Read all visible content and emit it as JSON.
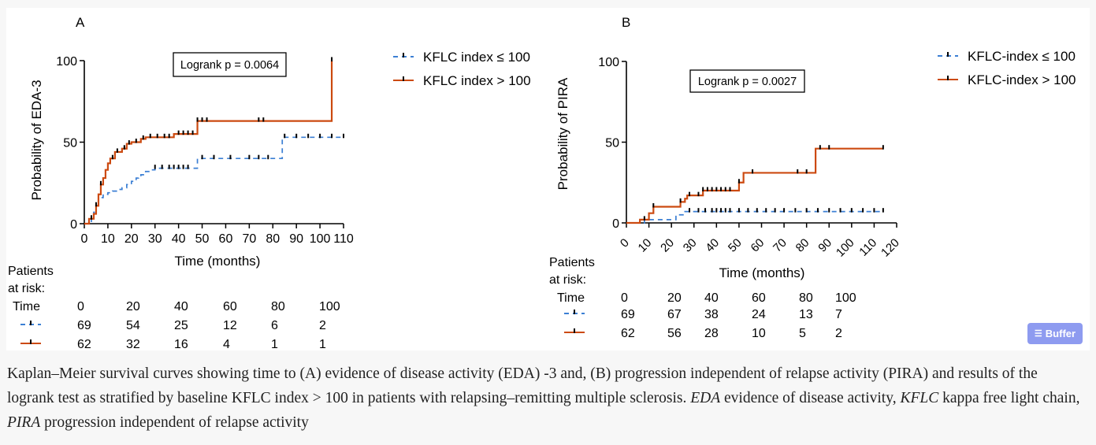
{
  "colors": {
    "orange": "#cc4a10",
    "blue": "#3b7fd4",
    "black": "#000000"
  },
  "chart_data": [
    {
      "type": "line",
      "panel_label": "A",
      "ylabel": "Probability of EDA-3",
      "xlabel": "Time (months)",
      "x_ticks": [
        "0",
        "10",
        "20",
        "30",
        "40",
        "50",
        "60",
        "70",
        "80",
        "90",
        "100",
        "110"
      ],
      "y_ticks": [
        "0",
        "50",
        "100"
      ],
      "xlim": [
        0,
        110
      ],
      "ylim": [
        0,
        100
      ],
      "logrank": "Logrank p = 0.0064",
      "series": [
        {
          "name": "KFLC index ≤ 100",
          "style": "dashed",
          "color": "#3b7fd4",
          "x": [
            0,
            3,
            4,
            5,
            6,
            8,
            10,
            12,
            14,
            16,
            18,
            20,
            22,
            23,
            24,
            26,
            28,
            30,
            48,
            84,
            110
          ],
          "y": [
            0,
            3,
            7,
            12,
            16,
            18,
            19,
            20,
            21,
            22,
            24,
            26,
            28,
            29,
            30,
            32,
            33,
            34,
            40,
            53,
            53
          ]
        },
        {
          "name": "KFLC index > 100",
          "style": "solid",
          "color": "#cc4a10",
          "x": [
            0,
            2,
            4,
            5,
            6,
            7,
            8,
            9,
            10,
            11,
            13,
            16,
            18,
            20,
            24,
            26,
            38,
            48,
            84,
            105,
            105
          ],
          "y": [
            0,
            3,
            6,
            11,
            18,
            24,
            28,
            33,
            37,
            40,
            44,
            46,
            49,
            50,
            52,
            53,
            55,
            63,
            63,
            63,
            100
          ]
        }
      ],
      "risk_table": {
        "title_line1": "Patients",
        "title_line2": "at risk:",
        "time_label": "Time",
        "times": [
          "0",
          "20",
          "40",
          "60",
          "80",
          "100"
        ],
        "rows": [
          [
            "69",
            "54",
            "25",
            "12",
            "6",
            "2"
          ],
          [
            "62",
            "32",
            "16",
            "4",
            "1",
            "1"
          ]
        ]
      }
    },
    {
      "type": "line",
      "panel_label": "B",
      "ylabel": "Probability of PIRA",
      "xlabel": "Time (months)",
      "x_ticks": [
        "0",
        "10",
        "20",
        "30",
        "40",
        "50",
        "60",
        "70",
        "80",
        "90",
        "100",
        "110",
        "120"
      ],
      "y_ticks": [
        "0",
        "50",
        "100"
      ],
      "xlim": [
        0,
        120
      ],
      "ylim": [
        0,
        100
      ],
      "logrank": "Logrank p = 0.0027",
      "series": [
        {
          "name": "KFLC-index ≤ 100",
          "style": "dashed",
          "color": "#3b7fd4",
          "x": [
            0,
            8,
            22,
            26,
            114
          ],
          "y": [
            0,
            2,
            5,
            7,
            7
          ]
        },
        {
          "name": "KFLC-index > 100",
          "style": "solid",
          "color": "#cc4a10",
          "x": [
            0,
            6,
            10,
            12,
            22,
            24,
            26,
            27,
            32,
            34,
            48,
            50,
            52,
            84,
            114
          ],
          "y": [
            0,
            2,
            6,
            10,
            10,
            13,
            15,
            17,
            17,
            20,
            20,
            25,
            31,
            46,
            46
          ]
        }
      ],
      "risk_table": {
        "title_line1": "Patients",
        "title_line2": "at risk:",
        "time_label": "Time",
        "times": [
          "0",
          "20",
          "40",
          "60",
          "80",
          "100"
        ],
        "rows": [
          [
            "69",
            "67",
            "38",
            "24",
            "13",
            "7"
          ],
          [
            "62",
            "56",
            "28",
            "10",
            "5",
            "2"
          ]
        ]
      }
    }
  ],
  "caption": {
    "p1": "Kaplan–Meier survival curves showing time to (A) evidence of disease activity (EDA) -3 and, (B) progression independent of relapse activity (PIRA) and results of the logrank test as stratified by baseline KFLC index > 100 in patients with relapsing–remitting multiple sclerosis. ",
    "abbr1": "EDA",
    "p2": " evidence of disease activity, ",
    "abbr2": "KFLC",
    "p3": " kappa free light chain, ",
    "abbr3": "PIRA",
    "p4": " progression independent of relapse activity"
  },
  "buffer_button": {
    "icon": "layers-icon",
    "label": "Buffer"
  }
}
